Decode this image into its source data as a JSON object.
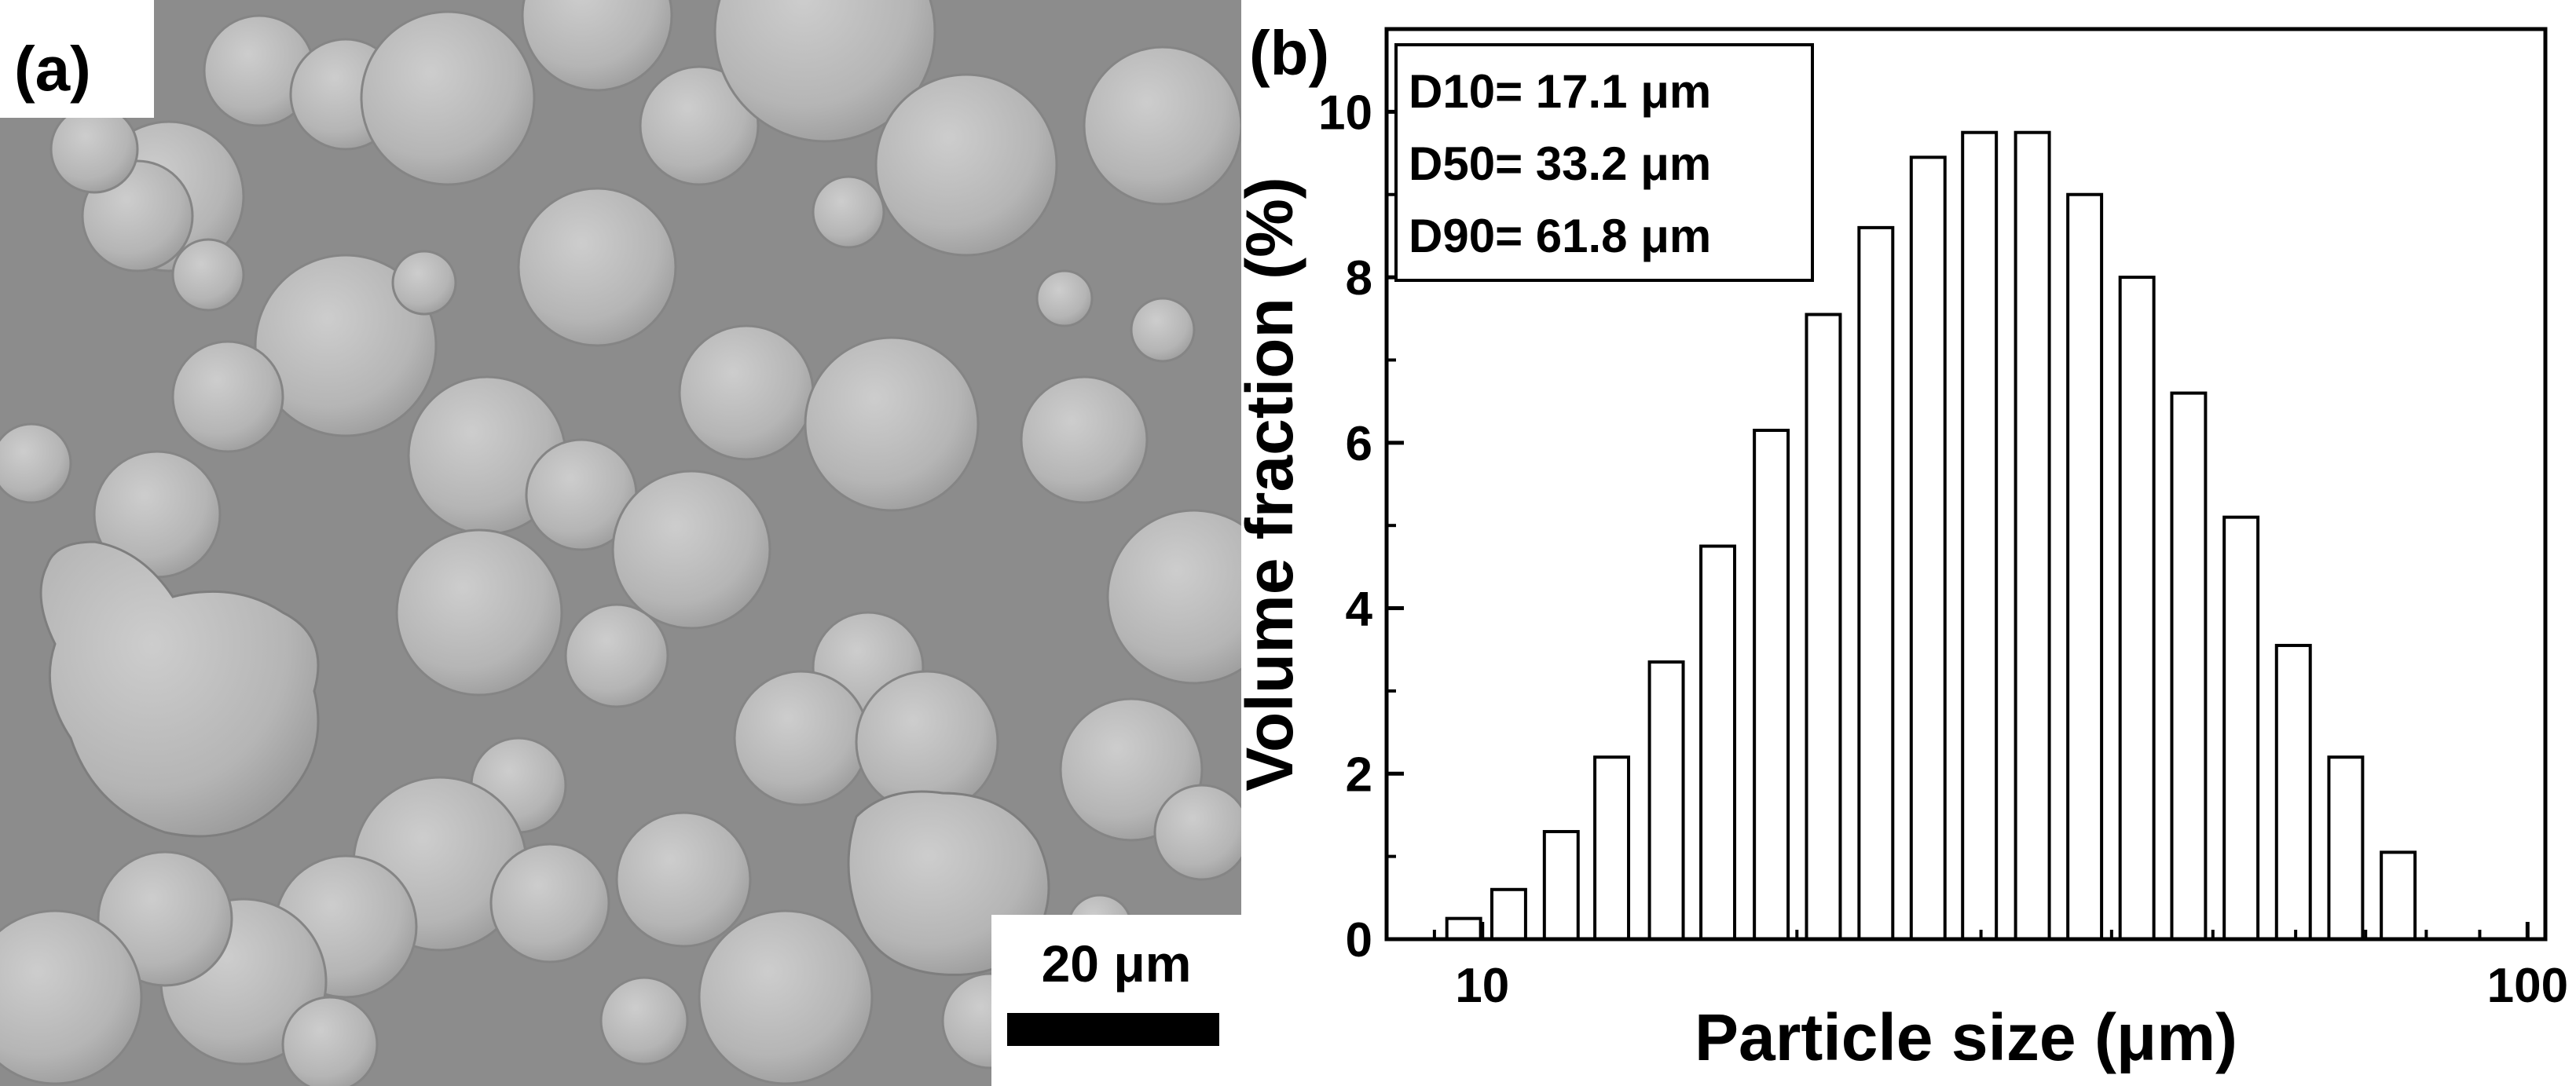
{
  "panel_a": {
    "label": "(a)",
    "scale_bar_label": "20 μm",
    "background_color": "#8c8c8c",
    "particle_color": "#b9b9b9"
  },
  "chart_data": {
    "panel_label": "(b)",
    "type": "bar",
    "x_scale": "log",
    "xlabel": "Particle size (μm)",
    "ylabel": "Volume fraction (%)",
    "xlim": [
      8.1,
      104
    ],
    "ylim": [
      0,
      11
    ],
    "x_ticks": [
      10,
      100
    ],
    "x_tick_labels": [
      "10",
      "100"
    ],
    "y_ticks": [
      0,
      2,
      4,
      6,
      8,
      10
    ],
    "y_tick_labels": [
      "0",
      "2",
      "4",
      "6",
      "8",
      "10"
    ],
    "bins": [
      {
        "center": 9.6,
        "value": 0.25
      },
      {
        "center": 10.6,
        "value": 0.6
      },
      {
        "center": 11.9,
        "value": 1.3
      },
      {
        "center": 13.3,
        "value": 2.2
      },
      {
        "center": 15.0,
        "value": 3.35
      },
      {
        "center": 16.8,
        "value": 4.75
      },
      {
        "center": 18.9,
        "value": 6.15
      },
      {
        "center": 21.2,
        "value": 7.55
      },
      {
        "center": 23.8,
        "value": 8.6
      },
      {
        "center": 26.7,
        "value": 9.45
      },
      {
        "center": 29.9,
        "value": 9.75
      },
      {
        "center": 33.6,
        "value": 9.75
      },
      {
        "center": 37.7,
        "value": 9.0
      },
      {
        "center": 42.3,
        "value": 8.0
      },
      {
        "center": 47.4,
        "value": 6.6
      },
      {
        "center": 53.2,
        "value": 5.1
      },
      {
        "center": 59.7,
        "value": 3.55
      },
      {
        "center": 67.0,
        "value": 2.2
      },
      {
        "center": 75.2,
        "value": 1.05
      }
    ],
    "annotations": [
      "D10= 17.1 μm",
      "D50= 33.2 μm",
      "D90= 61.8 μm"
    ],
    "grid": false,
    "legend": "none"
  }
}
